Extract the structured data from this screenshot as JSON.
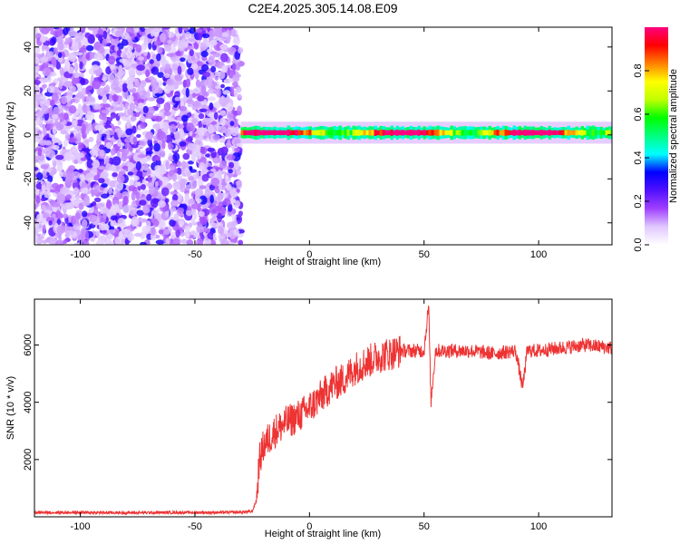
{
  "title": "C2E4.2025.305.14.08.E09",
  "chart_data": [
    {
      "type": "heatmap",
      "xlabel": "Height of straight line (km)",
      "ylabel": "Frequency (Hz)",
      "xlim": [
        -120,
        132
      ],
      "ylim": [
        -50,
        49
      ],
      "xticks": [
        -100,
        -50,
        0,
        50,
        100
      ],
      "yticks": [
        -40,
        -20,
        0,
        20,
        40
      ],
      "colorbar": {
        "label": "Normalized spectral amplitude",
        "range": [
          0,
          1
        ],
        "ticks": [
          0.0,
          0.2,
          0.4,
          0.6,
          0.8
        ],
        "colors": [
          "#ffffff",
          "#e0c8ff",
          "#a040ff",
          "#5010ff",
          "#0000ff",
          "#00ffff",
          "#00ff80",
          "#00ff00",
          "#c0ff00",
          "#ffff00",
          "#ff8000",
          "#ff0000",
          "#ff0080"
        ]
      },
      "noise_region_x": [
        -120,
        -30
      ],
      "signal_band": {
        "x_start": -30,
        "x_end": 132,
        "center_freq_hz": 1.0,
        "half_width_hz": 2.5
      }
    },
    {
      "type": "line",
      "xlabel": "Height of straight line (km)",
      "ylabel": "SNR (10 * v/v)",
      "xlim": [
        -120,
        132
      ],
      "ylim": [
        0,
        7600
      ],
      "xticks": [
        -100,
        -50,
        0,
        50,
        100
      ],
      "yticks": [
        2000,
        4000,
        6000
      ],
      "color": "#ee3333",
      "x": [
        -120,
        -100,
        -80,
        -60,
        -40,
        -30,
        -25,
        -23,
        -22,
        -20,
        -15,
        -10,
        -5,
        0,
        5,
        10,
        15,
        20,
        25,
        30,
        35,
        40,
        45,
        50,
        52,
        53,
        55,
        60,
        70,
        80,
        90,
        93,
        95,
        100,
        110,
        120,
        132
      ],
      "y": [
        150,
        150,
        140,
        150,
        150,
        160,
        180,
        600,
        1900,
        2500,
        3000,
        3300,
        3500,
        3800,
        4200,
        4600,
        4800,
        5200,
        5400,
        5600,
        5700,
        5800,
        5800,
        5800,
        7400,
        4000,
        5800,
        5800,
        5800,
        5700,
        5800,
        4500,
        5800,
        5800,
        5900,
        6000,
        5900
      ]
    }
  ]
}
